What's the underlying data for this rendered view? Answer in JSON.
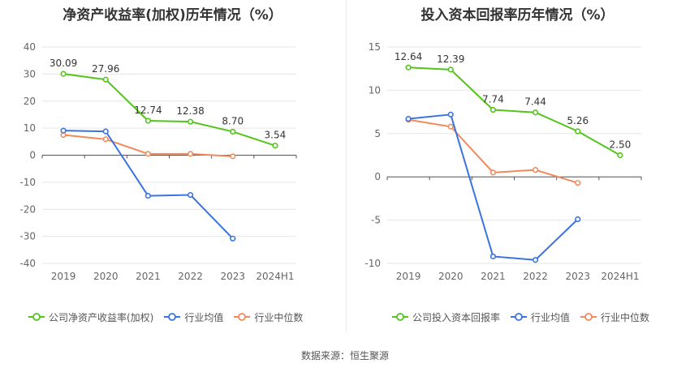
{
  "colors": {
    "company": "#52c41a",
    "avg": "#3a73e0",
    "median": "#f08a5d",
    "grid": "#e6e6e6",
    "axis": "#666666",
    "label": "#333333"
  },
  "source": "数据来源：恒生聚源",
  "chart_data": [
    {
      "type": "line",
      "title": "净资产收益率(加权)历年情况（%）",
      "categories": [
        "2019",
        "2020",
        "2021",
        "2022",
        "2023",
        "2024H1"
      ],
      "ylim": [
        -40,
        40
      ],
      "yticks": [
        40,
        30,
        20,
        10,
        0,
        -10,
        -20,
        -30,
        -40
      ],
      "grid": true,
      "legend_position": "bottom",
      "series": [
        {
          "name": "公司净资产收益率(加权)",
          "key": "company",
          "values": [
            30.09,
            27.96,
            12.74,
            12.38,
            8.7,
            3.54
          ],
          "labels": [
            "30.09",
            "27.96",
            "12.74",
            "12.38",
            "8.70",
            "3.54"
          ]
        },
        {
          "name": "行业均值",
          "key": "avg",
          "values": [
            9.1,
            8.8,
            -15.0,
            -14.7,
            -30.8,
            null
          ]
        },
        {
          "name": "行业中位数",
          "key": "median",
          "values": [
            7.5,
            5.9,
            0.5,
            0.5,
            -0.4,
            null
          ]
        }
      ]
    },
    {
      "type": "line",
      "title": "投入资本回报率历年情况（%）",
      "categories": [
        "2019",
        "2020",
        "2021",
        "2022",
        "2023",
        "2024H1"
      ],
      "ylim": [
        -10,
        15
      ],
      "yticks": [
        15,
        10,
        5,
        0,
        -5,
        -10
      ],
      "grid": true,
      "legend_position": "bottom",
      "series": [
        {
          "name": "公司投入资本回报率",
          "key": "company",
          "values": [
            12.64,
            12.39,
            7.74,
            7.44,
            5.26,
            2.5
          ],
          "labels": [
            "12.64",
            "12.39",
            "7.74",
            "7.44",
            "5.26",
            "2.50"
          ]
        },
        {
          "name": "行业均值",
          "key": "avg",
          "values": [
            6.7,
            7.2,
            -9.2,
            -9.6,
            -4.9,
            null
          ]
        },
        {
          "name": "行业中位数",
          "key": "median",
          "values": [
            6.6,
            5.8,
            0.5,
            0.8,
            -0.7,
            null
          ]
        }
      ]
    }
  ]
}
